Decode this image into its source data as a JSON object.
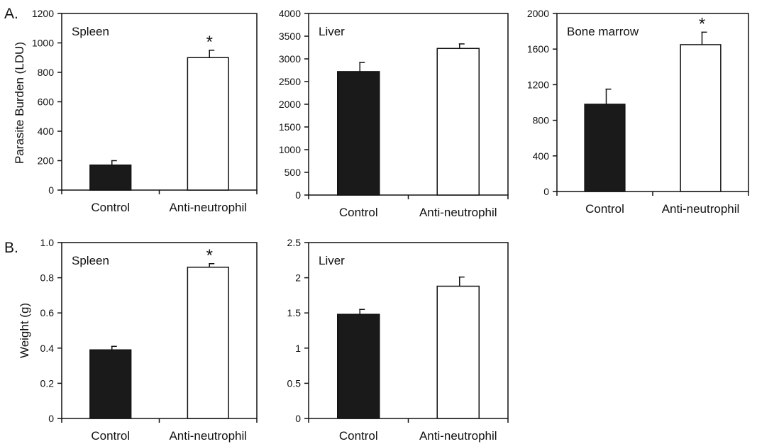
{
  "panels": {
    "A": {
      "letter": "A.",
      "ylabel": "Parasite Burden (LDU)"
    },
    "B": {
      "letter": "B.",
      "ylabel": "Weight (g)"
    }
  },
  "colors": {
    "control": "#1a1a1a",
    "treated": "#ffffff",
    "axis": "#111111"
  },
  "chart_data": [
    {
      "type": "bar",
      "panel": "A",
      "title": "Spleen",
      "xlabel": "",
      "ylabel": "Parasite Burden (LDU)",
      "categories": [
        "Control",
        "Anti-neutrophil"
      ],
      "values": [
        170,
        900
      ],
      "errors": [
        30,
        50
      ],
      "significance": [
        "",
        "*"
      ],
      "ylim": [
        0,
        1200
      ],
      "yticks": [
        0,
        200,
        400,
        600,
        800,
        1000,
        1200
      ]
    },
    {
      "type": "bar",
      "panel": "A",
      "title": "Liver",
      "xlabel": "",
      "ylabel": "",
      "categories": [
        "Control",
        "Anti-neutrophil"
      ],
      "values": [
        2720,
        3230
      ],
      "errors": [
        200,
        100
      ],
      "significance": [
        "",
        ""
      ],
      "ylim": [
        0,
        4000
      ],
      "yticks": [
        0,
        500,
        1000,
        1500,
        2000,
        2500,
        3000,
        3500,
        4000
      ]
    },
    {
      "type": "bar",
      "panel": "A",
      "title": "Bone marrow",
      "xlabel": "",
      "ylabel": "",
      "categories": [
        "Control",
        "Anti-neutrophil"
      ],
      "values": [
        980,
        1650
      ],
      "errors": [
        170,
        140
      ],
      "significance": [
        "",
        "*"
      ],
      "ylim": [
        0,
        2000
      ],
      "yticks": [
        0,
        400,
        800,
        1200,
        1600,
        2000
      ]
    },
    {
      "type": "bar",
      "panel": "B",
      "title": "Spleen",
      "xlabel": "",
      "ylabel": "Weight (g)",
      "categories": [
        "Control",
        "Anti-neutrophil"
      ],
      "values": [
        0.39,
        0.86
      ],
      "errors": [
        0.02,
        0.02
      ],
      "significance": [
        "",
        "*"
      ],
      "ylim": [
        0,
        1.0
      ],
      "yticks": [
        0,
        0.2,
        0.4,
        0.6,
        0.8,
        1.0
      ],
      "ytick_labels": [
        "0",
        "0.2",
        "0.4",
        "0.6",
        "0.8",
        "1.0"
      ]
    },
    {
      "type": "bar",
      "panel": "B",
      "title": "Liver",
      "xlabel": "",
      "ylabel": "",
      "categories": [
        "Control",
        "Anti-neutrophil"
      ],
      "values": [
        1.48,
        1.88
      ],
      "errors": [
        0.07,
        0.13
      ],
      "significance": [
        "",
        ""
      ],
      "ylim": [
        0,
        2.5
      ],
      "yticks": [
        0,
        0.5,
        1,
        1.5,
        2,
        2.5
      ],
      "ytick_labels": [
        "0",
        "0.5",
        "1",
        "1.5",
        "2",
        "2.5"
      ]
    }
  ]
}
